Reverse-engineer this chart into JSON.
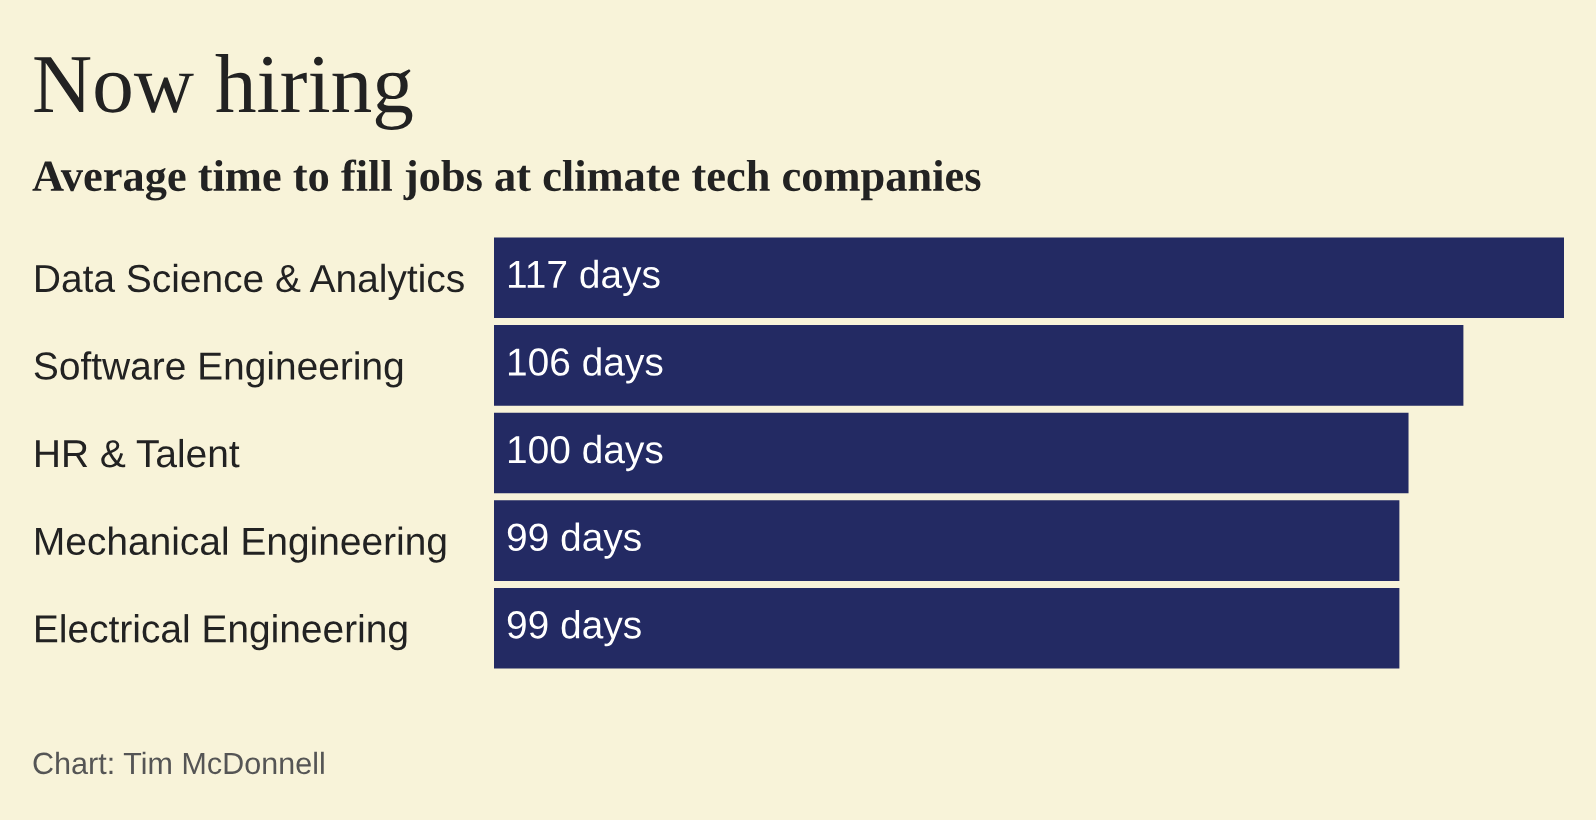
{
  "chart_data": {
    "type": "bar",
    "orientation": "horizontal",
    "title": "Now hiring",
    "subtitle": "Average time to fill jobs at climate tech companies",
    "categories": [
      "Data Science & Analytics",
      "Software Engineering",
      "HR & Talent",
      "Mechanical Engineering",
      "Electrical Engineering"
    ],
    "values": [
      117,
      106,
      100,
      99,
      99
    ],
    "value_labels": [
      "117 days",
      "106 days",
      "100 days",
      "99 days",
      "99 days"
    ],
    "color": "#232a63",
    "grid": false,
    "annotations": [
      "Chart: Tim McDonnell"
    ]
  }
}
